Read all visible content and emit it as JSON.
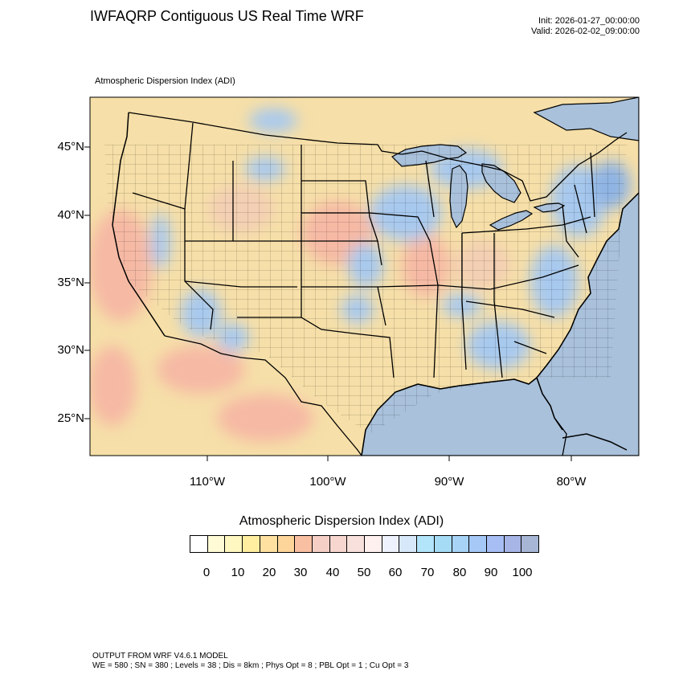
{
  "header": {
    "title": "IWFAQRP Contiguous US Real Time WRF",
    "init": "Init: 2026-01-27_00:00:00",
    "valid": "Valid: 2026-02-02_09:00:00",
    "field_label": "Atmospheric Dispersion Index   (ADI)"
  },
  "map": {
    "lat_labels": [
      "45°N",
      "40°N",
      "35°N",
      "30°N",
      "25°N"
    ],
    "lon_labels": [
      "110°W",
      "100°W",
      "90°W",
      "80°W"
    ],
    "colors": {
      "ocean": "#a9c1db",
      "land_base": "#f6dfa8",
      "warm_high": "#f6b9a4",
      "warm_mid": "#f3cfb3",
      "cool": "#a8c9ee",
      "cool_deep": "#8fb4e3",
      "border": "#000000"
    }
  },
  "colorbar": {
    "title": "Atmospheric Dispersion Index  (ADI)",
    "tick_labels": [
      "0",
      "10",
      "20",
      "30",
      "40",
      "50",
      "60",
      "70",
      "80",
      "90",
      "100"
    ],
    "colors": [
      "#ffffff",
      "#fffbd6",
      "#fff7c0",
      "#ffeda0",
      "#fee0a0",
      "#fdd59a",
      "#f9bfa3",
      "#f5cfc6",
      "#f6d6cf",
      "#f8e0dc",
      "#fdf0ee",
      "#eef2fd",
      "#d8e8fb",
      "#b2e4fa",
      "#a6dbf6",
      "#a6d3f6",
      "#a5c8f6",
      "#a7bef4",
      "#a6b4e6",
      "#a6b6d4"
    ]
  },
  "footer": {
    "line1": "OUTPUT FROM WRF V4.6.1 MODEL",
    "line2": "WE = 580 ; SN = 380 ; Levels = 38 ; Dis = 8km ; Phys Opt = 8 ; PBL Opt = 1 ; Cu Opt = 3"
  }
}
